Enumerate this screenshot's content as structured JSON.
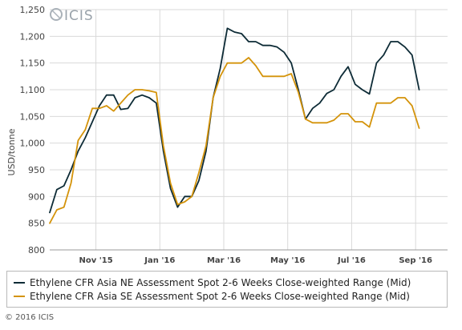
{
  "logo": {
    "text": "ICIS"
  },
  "footer": {
    "copyright": "© 2016 ICIS"
  },
  "chart_data": {
    "type": "line",
    "title": "",
    "xlabel": "",
    "ylabel": "USD/tonne",
    "ylim": [
      800,
      1250
    ],
    "yticks": [
      800,
      850,
      900,
      950,
      1000,
      1050,
      1100,
      1150,
      1200,
      1250
    ],
    "ytick_labels": [
      "800",
      "850",
      "900",
      "950",
      "1,000",
      "1,050",
      "1,100",
      "1,150",
      "1,200",
      "1,250"
    ],
    "xtick_labels": [
      "Nov '15",
      "Jan '16",
      "Mar '16",
      "May '16",
      "Jul '16",
      "Sep '16"
    ],
    "xtick_positions": [
      6.5,
      15.5,
      24.5,
      33.5,
      42.5,
      51.5
    ],
    "xlim": [
      0,
      56
    ],
    "grid": true,
    "legend_position": "bottom",
    "series": [
      {
        "name": "Ethylene CFR Asia NE Assessment Spot 2-6 Weeks Close-weighted Range (Mid)",
        "color": "#0d2b36",
        "values": [
          870,
          913,
          920,
          950,
          985,
          1010,
          1040,
          1070,
          1090,
          1090,
          1063,
          1065,
          1085,
          1090,
          1085,
          1075,
          985,
          915,
          880,
          900,
          900,
          930,
          985,
          1085,
          1140,
          1215,
          1208,
          1205,
          1190,
          1190,
          1183,
          1183,
          1180,
          1170,
          1150,
          1100,
          1045,
          1065,
          1075,
          1093,
          1100,
          1125,
          1143,
          1110,
          1100,
          1092,
          1150,
          1165,
          1190,
          1190,
          1180,
          1165,
          1100
        ]
      },
      {
        "name": "Ethylene CFR Asia SE Assessment Spot 2-6 Weeks Close-weighted Range (Mid)",
        "color": "#d4930a",
        "values": [
          850,
          875,
          880,
          925,
          1005,
          1025,
          1065,
          1065,
          1070,
          1060,
          1075,
          1090,
          1100,
          1100,
          1098,
          1095,
          995,
          925,
          885,
          890,
          900,
          945,
          995,
          1085,
          1125,
          1150,
          1150,
          1150,
          1160,
          1145,
          1125,
          1125,
          1125,
          1125,
          1130,
          1095,
          1045,
          1038,
          1038,
          1038,
          1043,
          1055,
          1055,
          1040,
          1040,
          1030,
          1075,
          1075,
          1075,
          1085,
          1085,
          1070,
          1028
        ]
      }
    ]
  }
}
